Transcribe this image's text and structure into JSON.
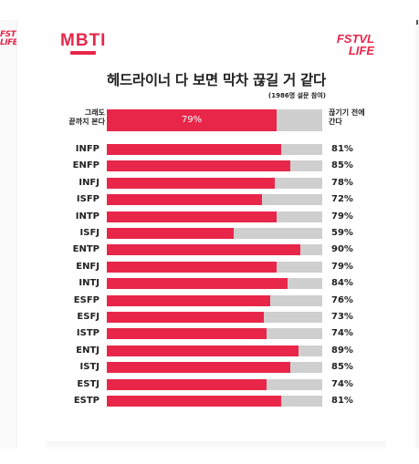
{
  "brand": {
    "mbti_logo": "MBTI",
    "fest_logo_line1": "FSTVL",
    "fest_logo_line2": "LIFE",
    "edge_logo_line1": "FSTV",
    "edge_logo_line2": "LIFE"
  },
  "colors": {
    "accent": "#e8264a",
    "track": "#cfcfcf",
    "text": "#222222"
  },
  "chart_data": {
    "type": "bar",
    "orientation": "horizontal",
    "title": "헤드라이너 다 보면 막차 끊길 거 같다",
    "subtitle": "(1986명 설문 참여)",
    "summary": {
      "left_label_line1": "그래도",
      "left_label_line2": "끝까지 본다",
      "right_label_line1": "끊기기 전에",
      "right_label_line2": "간다",
      "value": 79,
      "value_label": "79%"
    },
    "categories": [
      "INFP",
      "ENFP",
      "INFJ",
      "ISFP",
      "INTP",
      "ISFJ",
      "ENTP",
      "ENFJ",
      "INTJ",
      "ESFP",
      "ESFJ",
      "ISTP",
      "ENTJ",
      "ISTJ",
      "ESTJ",
      "ESTP"
    ],
    "values": [
      81,
      85,
      78,
      72,
      79,
      59,
      90,
      79,
      84,
      76,
      73,
      74,
      89,
      85,
      74,
      81
    ],
    "value_labels": [
      "81%",
      "85%",
      "78%",
      "72%",
      "79%",
      "59%",
      "90%",
      "79%",
      "84%",
      "76%",
      "73%",
      "74%",
      "89%",
      "85%",
      "74%",
      "81%"
    ],
    "ylim": [
      0,
      100
    ]
  }
}
